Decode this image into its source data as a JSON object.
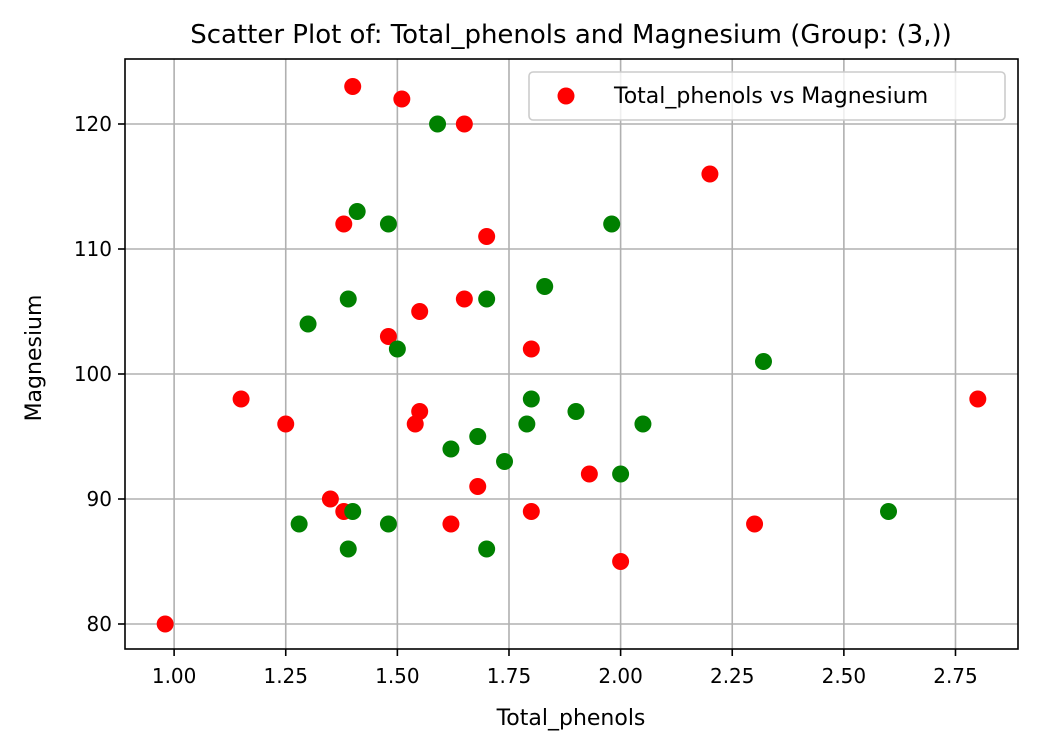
{
  "chart_data": {
    "type": "scatter",
    "title": "Scatter Plot of: Total_phenols and Magnesium (Group: (3,))",
    "xlabel": "Total_phenols",
    "ylabel": "Magnesium",
    "xlim": [
      0.89,
      2.89
    ],
    "ylim": [
      78,
      125.2
    ],
    "xticks": [
      "1.00",
      "1.25",
      "1.50",
      "1.75",
      "2.00",
      "2.25",
      "2.50",
      "2.75"
    ],
    "xtick_values": [
      1.0,
      1.25,
      1.5,
      1.75,
      2.0,
      2.25,
      2.5,
      2.75
    ],
    "yticks": [
      "80",
      "90",
      "100",
      "110",
      "120"
    ],
    "ytick_values": [
      80,
      90,
      100,
      110,
      120
    ],
    "grid": true,
    "legend": {
      "position": "top-right",
      "label": "Total_phenols vs Magnesium"
    },
    "series": [
      {
        "name": "Total_phenols vs Magnesium",
        "color": "#ff0000",
        "points": [
          {
            "x": 1.4,
            "y": 123
          },
          {
            "x": 1.51,
            "y": 122
          },
          {
            "x": 1.65,
            "y": 120
          },
          {
            "x": 2.2,
            "y": 116
          },
          {
            "x": 1.38,
            "y": 112
          },
          {
            "x": 1.7,
            "y": 111
          },
          {
            "x": 1.65,
            "y": 106
          },
          {
            "x": 1.55,
            "y": 105
          },
          {
            "x": 1.48,
            "y": 103
          },
          {
            "x": 1.8,
            "y": 102
          },
          {
            "x": 1.15,
            "y": 98
          },
          {
            "x": 2.8,
            "y": 98
          },
          {
            "x": 1.55,
            "y": 97
          },
          {
            "x": 1.25,
            "y": 96
          },
          {
            "x": 1.54,
            "y": 96
          },
          {
            "x": 1.93,
            "y": 92
          },
          {
            "x": 1.68,
            "y": 91
          },
          {
            "x": 1.35,
            "y": 90
          },
          {
            "x": 1.38,
            "y": 89
          },
          {
            "x": 1.8,
            "y": 89
          },
          {
            "x": 1.62,
            "y": 88
          },
          {
            "x": 2.3,
            "y": 88
          },
          {
            "x": 2.0,
            "y": 85
          },
          {
            "x": 0.98,
            "y": 80
          }
        ]
      },
      {
        "color": "#008000",
        "points": [
          {
            "x": 1.59,
            "y": 120
          },
          {
            "x": 1.41,
            "y": 113
          },
          {
            "x": 1.48,
            "y": 112
          },
          {
            "x": 1.98,
            "y": 112
          },
          {
            "x": 1.83,
            "y": 107
          },
          {
            "x": 1.39,
            "y": 106
          },
          {
            "x": 1.7,
            "y": 106
          },
          {
            "x": 1.3,
            "y": 104
          },
          {
            "x": 1.5,
            "y": 102
          },
          {
            "x": 2.32,
            "y": 101
          },
          {
            "x": 1.8,
            "y": 98
          },
          {
            "x": 1.9,
            "y": 97
          },
          {
            "x": 1.79,
            "y": 96
          },
          {
            "x": 2.05,
            "y": 96
          },
          {
            "x": 1.68,
            "y": 95
          },
          {
            "x": 1.62,
            "y": 94
          },
          {
            "x": 1.74,
            "y": 93
          },
          {
            "x": 2.0,
            "y": 92
          },
          {
            "x": 1.4,
            "y": 89
          },
          {
            "x": 2.6,
            "y": 89
          },
          {
            "x": 1.28,
            "y": 88
          },
          {
            "x": 1.48,
            "y": 88
          },
          {
            "x": 1.39,
            "y": 86
          },
          {
            "x": 1.7,
            "y": 86
          }
        ]
      }
    ]
  }
}
